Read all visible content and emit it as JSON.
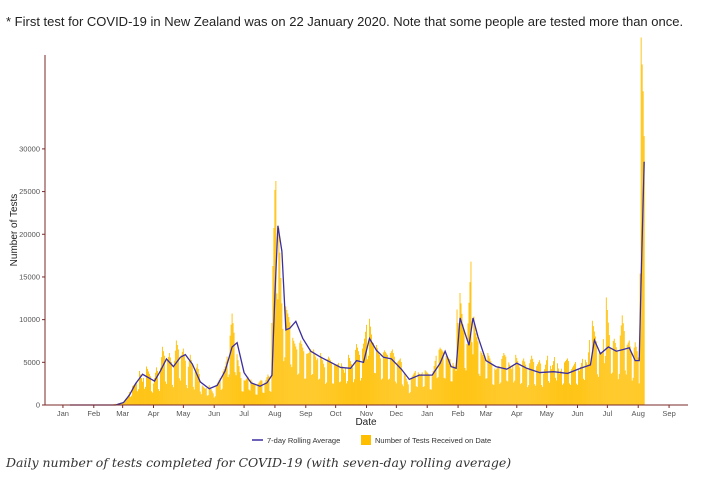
{
  "note": "* First test for COVID-19 in New Zealand was on 22 January 2020. Note that some people are tested more than once.",
  "caption": "Daily number of tests completed for COVID-19 (with seven-day rolling average)",
  "colors": {
    "bars": "#FFBF00",
    "line": "#3B2FA0",
    "axis": "#7a2a2a"
  },
  "chart_data": {
    "type": "bar",
    "xlabel": "Date",
    "ylabel": "Number of Tests",
    "ylim": [
      0,
      41000
    ],
    "yticks": [
      0,
      5000,
      10000,
      15000,
      20000,
      25000,
      30000
    ],
    "ytick_labels": [
      "0",
      "5000",
      "10000",
      "15000",
      "20000",
      "25000",
      "30000"
    ],
    "xticks": [
      {
        "label": "Jan",
        "date": "2020-01-15"
      },
      {
        "label": "Feb",
        "date": "2020-02-15"
      },
      {
        "label": "Mar",
        "date": "2020-03-15"
      },
      {
        "label": "Apr",
        "date": "2020-04-15"
      },
      {
        "label": "May",
        "date": "2020-05-15"
      },
      {
        "label": "Jun",
        "date": "2020-06-15"
      },
      {
        "label": "Jul",
        "date": "2020-07-15"
      },
      {
        "label": "Aug",
        "date": "2020-08-15"
      },
      {
        "label": "Sep",
        "date": "2020-09-15"
      },
      {
        "label": "Oct",
        "date": "2020-10-15"
      },
      {
        "label": "Nov",
        "date": "2020-11-15"
      },
      {
        "label": "Dec",
        "date": "2020-12-15"
      },
      {
        "label": "Jan",
        "date": "2021-01-15"
      },
      {
        "label": "Feb",
        "date": "2021-02-15"
      },
      {
        "label": "Mar",
        "date": "2021-03-15"
      },
      {
        "label": "Apr",
        "date": "2021-04-15"
      },
      {
        "label": "May",
        "date": "2021-05-15"
      },
      {
        "label": "Jun",
        "date": "2021-06-15"
      },
      {
        "label": "Jul",
        "date": "2021-07-15"
      },
      {
        "label": "Aug",
        "date": "2021-08-15"
      },
      {
        "label": "Sep",
        "date": "2021-09-15"
      }
    ],
    "grid": false,
    "legend_position": "bottom",
    "legend": [
      "7-day Rolling Average",
      "Number of Tests Received on Date"
    ],
    "series": [
      {
        "name": "Number of Tests Received on Date",
        "type": "bar",
        "points": [
          [
            "2020-01-22",
            0
          ],
          [
            "2020-02-15",
            0
          ],
          [
            "2020-03-05",
            50
          ],
          [
            "2020-03-15",
            300
          ],
          [
            "2020-03-20",
            900
          ],
          [
            "2020-03-24",
            2000
          ],
          [
            "2020-03-29",
            2500
          ],
          [
            "2020-04-01",
            3800
          ],
          [
            "2020-04-04",
            2600
          ],
          [
            "2020-04-08",
            4300
          ],
          [
            "2020-04-12",
            3200
          ],
          [
            "2020-04-15",
            2400
          ],
          [
            "2020-04-18",
            4200
          ],
          [
            "2020-04-21",
            3000
          ],
          [
            "2020-04-24",
            6500
          ],
          [
            "2020-04-28",
            4500
          ],
          [
            "2020-05-01",
            5800
          ],
          [
            "2020-05-05",
            3800
          ],
          [
            "2020-05-08",
            7200
          ],
          [
            "2020-05-12",
            5200
          ],
          [
            "2020-05-15",
            6300
          ],
          [
            "2020-05-19",
            3600
          ],
          [
            "2020-05-22",
            5600
          ],
          [
            "2020-05-26",
            3300
          ],
          [
            "2020-05-29",
            4600
          ],
          [
            "2020-06-02",
            2300
          ],
          [
            "2020-06-06",
            1800
          ],
          [
            "2020-06-10",
            2200
          ],
          [
            "2020-06-14",
            1300
          ],
          [
            "2020-06-18",
            2400
          ],
          [
            "2020-06-22",
            3200
          ],
          [
            "2020-06-26",
            4300
          ],
          [
            "2020-06-30",
            6500
          ],
          [
            "2020-07-03",
            10200
          ],
          [
            "2020-07-06",
            7000
          ],
          [
            "2020-07-09",
            5000
          ],
          [
            "2020-07-12",
            3000
          ],
          [
            "2020-07-16",
            2700
          ],
          [
            "2020-07-20",
            3300
          ],
          [
            "2020-07-24",
            2400
          ],
          [
            "2020-07-28",
            2200
          ],
          [
            "2020-08-01",
            2800
          ],
          [
            "2020-08-05",
            2500
          ],
          [
            "2020-08-08",
            3400
          ],
          [
            "2020-08-11",
            2800
          ],
          [
            "2020-08-13",
            15500
          ],
          [
            "2020-08-15",
            24000
          ],
          [
            "2020-08-16",
            25000
          ],
          [
            "2020-08-18",
            22500
          ],
          [
            "2020-08-20",
            17000
          ],
          [
            "2020-08-23",
            8500
          ],
          [
            "2020-08-26",
            11000
          ],
          [
            "2020-08-29",
            9800
          ],
          [
            "2020-09-02",
            7500
          ],
          [
            "2020-09-06",
            6200
          ],
          [
            "2020-09-10",
            7200
          ],
          [
            "2020-09-14",
            5600
          ],
          [
            "2020-09-18",
            5800
          ],
          [
            "2020-09-22",
            6600
          ],
          [
            "2020-09-26",
            5000
          ],
          [
            "2020-09-30",
            5800
          ],
          [
            "2020-10-04",
            4200
          ],
          [
            "2020-10-08",
            5400
          ],
          [
            "2020-10-12",
            4600
          ],
          [
            "2020-10-16",
            4400
          ],
          [
            "2020-10-20",
            5000
          ],
          [
            "2020-10-24",
            3600
          ],
          [
            "2020-10-28",
            5600
          ],
          [
            "2020-11-01",
            4200
          ],
          [
            "2020-11-05",
            6800
          ],
          [
            "2020-11-09",
            5200
          ],
          [
            "2020-11-13",
            7400
          ],
          [
            "2020-11-17",
            10500
          ],
          [
            "2020-11-21",
            7000
          ],
          [
            "2020-11-25",
            6700
          ],
          [
            "2020-11-29",
            5200
          ],
          [
            "2020-12-03",
            6100
          ],
          [
            "2020-12-07",
            5400
          ],
          [
            "2020-12-11",
            6200
          ],
          [
            "2020-12-15",
            4600
          ],
          [
            "2020-12-19",
            5200
          ],
          [
            "2020-12-23",
            3600
          ],
          [
            "2020-12-27",
            2300
          ],
          [
            "2020-12-31",
            3200
          ],
          [
            "2021-01-04",
            4000
          ],
          [
            "2021-01-08",
            3300
          ],
          [
            "2021-01-12",
            4000
          ],
          [
            "2021-01-16",
            3500
          ],
          [
            "2021-01-20",
            3200
          ],
          [
            "2021-01-24",
            5500
          ],
          [
            "2021-01-28",
            6400
          ],
          [
            "2021-02-01",
            5800
          ],
          [
            "2021-02-05",
            5200
          ],
          [
            "2021-02-09",
            5000
          ],
          [
            "2021-02-13",
            3800
          ],
          [
            "2021-02-15",
            17500
          ],
          [
            "2021-02-17",
            12500
          ],
          [
            "2021-02-20",
            9000
          ],
          [
            "2021-02-24",
            6800
          ],
          [
            "2021-02-28",
            16000
          ],
          [
            "2021-03-02",
            10800
          ],
          [
            "2021-03-05",
            8000
          ],
          [
            "2021-03-09",
            6200
          ],
          [
            "2021-03-13",
            5400
          ],
          [
            "2021-03-17",
            5800
          ],
          [
            "2021-03-21",
            4600
          ],
          [
            "2021-03-25",
            3900
          ],
          [
            "2021-03-29",
            4500
          ],
          [
            "2021-04-02",
            5800
          ],
          [
            "2021-04-06",
            5000
          ],
          [
            "2021-04-10",
            4000
          ],
          [
            "2021-04-14",
            5600
          ],
          [
            "2021-04-18",
            4200
          ],
          [
            "2021-04-22",
            5200
          ],
          [
            "2021-04-26",
            3800
          ],
          [
            "2021-04-30",
            5500
          ],
          [
            "2021-05-04",
            4100
          ],
          [
            "2021-05-08",
            5000
          ],
          [
            "2021-05-12",
            3500
          ],
          [
            "2021-05-16",
            5500
          ],
          [
            "2021-05-20",
            4000
          ],
          [
            "2021-05-24",
            5800
          ],
          [
            "2021-05-28",
            3500
          ],
          [
            "2021-06-01",
            4600
          ],
          [
            "2021-06-05",
            5200
          ],
          [
            "2021-06-09",
            4000
          ],
          [
            "2021-06-13",
            4800
          ],
          [
            "2021-06-17",
            3800
          ],
          [
            "2021-06-21",
            5600
          ],
          [
            "2021-06-25",
            4500
          ],
          [
            "2021-06-29",
            10000
          ],
          [
            "2021-07-02",
            8200
          ],
          [
            "2021-07-06",
            6000
          ],
          [
            "2021-07-10",
            5800
          ],
          [
            "2021-07-14",
            12000
          ],
          [
            "2021-07-18",
            6400
          ],
          [
            "2021-07-22",
            7400
          ],
          [
            "2021-07-26",
            5500
          ],
          [
            "2021-07-30",
            10000
          ],
          [
            "2021-08-03",
            6500
          ],
          [
            "2021-08-06",
            7200
          ],
          [
            "2021-08-09",
            5200
          ],
          [
            "2021-08-12",
            7000
          ],
          [
            "2021-08-14",
            6000
          ],
          [
            "2021-08-16",
            4600
          ],
          [
            "2021-08-17",
            28000
          ],
          [
            "2021-08-18",
            41000
          ],
          [
            "2021-08-19",
            38000
          ],
          [
            "2021-08-20",
            35000
          ],
          [
            "2021-08-21",
            30000
          ]
        ]
      },
      {
        "name": "7-day Rolling Average",
        "type": "line",
        "points": [
          [
            "2020-01-22",
            0
          ],
          [
            "2020-03-08",
            0
          ],
          [
            "2020-03-16",
            300
          ],
          [
            "2020-03-22",
            1200
          ],
          [
            "2020-03-28",
            2500
          ],
          [
            "2020-04-04",
            3600
          ],
          [
            "2020-04-10",
            3200
          ],
          [
            "2020-04-16",
            2800
          ],
          [
            "2020-04-22",
            4000
          ],
          [
            "2020-04-28",
            5400
          ],
          [
            "2020-05-05",
            4500
          ],
          [
            "2020-05-12",
            5600
          ],
          [
            "2020-05-17",
            5900
          ],
          [
            "2020-05-24",
            4800
          ],
          [
            "2020-06-01",
            2700
          ],
          [
            "2020-06-10",
            1900
          ],
          [
            "2020-06-18",
            2300
          ],
          [
            "2020-06-26",
            4000
          ],
          [
            "2020-07-03",
            6800
          ],
          [
            "2020-07-08",
            7300
          ],
          [
            "2020-07-15",
            3800
          ],
          [
            "2020-07-22",
            2600
          ],
          [
            "2020-07-31",
            2200
          ],
          [
            "2020-08-07",
            2600
          ],
          [
            "2020-08-12",
            3500
          ],
          [
            "2020-08-15",
            13000
          ],
          [
            "2020-08-18",
            21000
          ],
          [
            "2020-08-22",
            18000
          ],
          [
            "2020-08-26",
            8800
          ],
          [
            "2020-08-30",
            9000
          ],
          [
            "2020-09-05",
            9800
          ],
          [
            "2020-09-12",
            7800
          ],
          [
            "2020-09-20",
            6300
          ],
          [
            "2020-09-30",
            5600
          ],
          [
            "2020-10-10",
            5000
          ],
          [
            "2020-10-20",
            4400
          ],
          [
            "2020-10-30",
            4300
          ],
          [
            "2020-11-05",
            5200
          ],
          [
            "2020-11-12",
            5000
          ],
          [
            "2020-11-18",
            7800
          ],
          [
            "2020-11-25",
            6400
          ],
          [
            "2020-12-02",
            5600
          ],
          [
            "2020-12-10",
            5400
          ],
          [
            "2020-12-20",
            4200
          ],
          [
            "2020-12-28",
            3000
          ],
          [
            "2021-01-07",
            3500
          ],
          [
            "2021-01-20",
            3500
          ],
          [
            "2021-01-28",
            4900
          ],
          [
            "2021-02-02",
            6300
          ],
          [
            "2021-02-08",
            4500
          ],
          [
            "2021-02-13",
            4300
          ],
          [
            "2021-02-17",
            10200
          ],
          [
            "2021-02-22",
            8400
          ],
          [
            "2021-02-26",
            7000
          ],
          [
            "2021-03-02",
            10200
          ],
          [
            "2021-03-07",
            8000
          ],
          [
            "2021-03-15",
            5200
          ],
          [
            "2021-03-25",
            4500
          ],
          [
            "2021-04-05",
            4200
          ],
          [
            "2021-04-15",
            4900
          ],
          [
            "2021-04-25",
            4300
          ],
          [
            "2021-05-08",
            3800
          ],
          [
            "2021-05-22",
            3900
          ],
          [
            "2021-06-05",
            3700
          ],
          [
            "2021-06-18",
            4300
          ],
          [
            "2021-06-28",
            4700
          ],
          [
            "2021-07-02",
            7600
          ],
          [
            "2021-07-08",
            6000
          ],
          [
            "2021-07-16",
            6800
          ],
          [
            "2021-07-24",
            6300
          ],
          [
            "2021-07-31",
            6500
          ],
          [
            "2021-08-06",
            6700
          ],
          [
            "2021-08-12",
            5200
          ],
          [
            "2021-08-16",
            5200
          ],
          [
            "2021-08-18",
            15000
          ],
          [
            "2021-08-21",
            28500
          ]
        ]
      }
    ]
  }
}
